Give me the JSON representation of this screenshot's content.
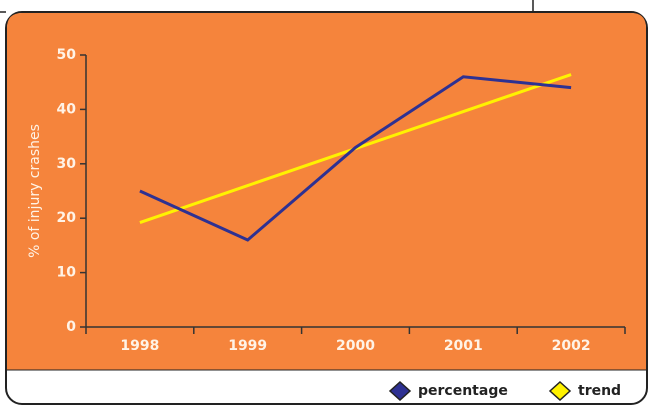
{
  "chart_data": {
    "type": "line",
    "y_label": "% of injury crashes",
    "categories": [
      "1998",
      "1999",
      "2000",
      "2001",
      "2002"
    ],
    "series": [
      {
        "name": "percentage",
        "color": "#2e3192",
        "values": [
          25,
          16,
          33,
          46,
          44
        ]
      },
      {
        "name": "trend",
        "color": "#fff200",
        "values": [
          19.2,
          26,
          32.8,
          39.6,
          46.4
        ]
      }
    ],
    "ylim": [
      0,
      50
    ],
    "yticks": [
      0,
      10,
      20,
      30,
      40,
      50
    ],
    "background": "#f5843c",
    "legend": "bottom-right"
  }
}
